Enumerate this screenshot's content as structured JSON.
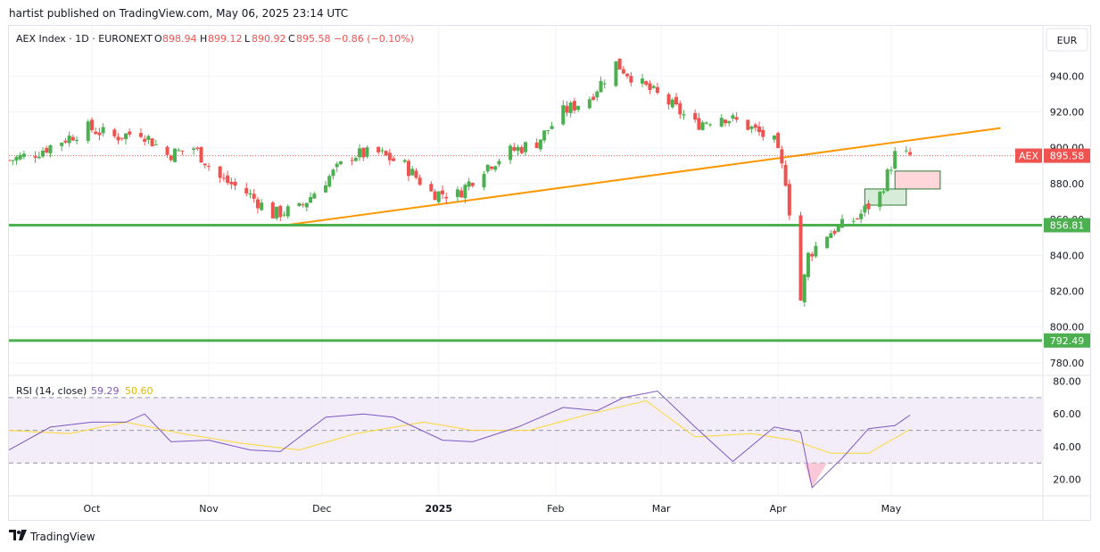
{
  "caption": "hartist published on TradingView.com, May 06, 2025 23:14 UTC",
  "footer": {
    "brand": "TradingView",
    "logo_icon": "tradingview-logo-icon"
  },
  "legend": {
    "symbol": "AEX Index · 1D · EURONEXT",
    "open_label": "O",
    "open": "898.94",
    "high_label": "H",
    "high": "899.12",
    "low_label": "L",
    "low": "890.92",
    "close_label": "C",
    "close": "895.58",
    "change": "−0.86 (−0.10%)"
  },
  "currency_button": "EUR",
  "colors": {
    "up": "#4caf50",
    "down": "#ef5350",
    "trendline": "#ff9800",
    "support": "#4caf50",
    "rsi": "#7e57c2",
    "rsi_ma": "#fdd835",
    "rsi_band": "#ede7f6",
    "oversold_fill": "#f8bbd0"
  },
  "chart_data": [
    {
      "type": "candlestick",
      "title": "AEX Index · 1D · EURONEXT",
      "y_ticks": [
        780,
        800,
        820,
        840,
        860,
        880,
        900,
        920,
        940
      ],
      "y_tick_labels": [
        "780.00",
        "800.00",
        "820.00",
        "840.00",
        "860.00",
        "880.00",
        "900.00",
        "920.00",
        "940.00"
      ],
      "ylim": [
        773,
        968
      ],
      "x_ticks": [
        "Oct",
        "Nov",
        "Dec",
        "2025",
        "Feb",
        "Mar",
        "Apr",
        "May"
      ],
      "x_tick_dates": [
        "2024-10-01",
        "2024-11-01",
        "2024-12-01",
        "2025-01-01",
        "2025-02-01",
        "2025-03-01",
        "2025-04-01",
        "2025-05-01"
      ],
      "x_start": "2024-09-09",
      "x_end": "2025-06-10",
      "grid": true,
      "close_series": {
        "name": "AEX",
        "x": [
          "2024-09-09",
          "2024-09-16",
          "2024-09-23",
          "2024-09-30",
          "2024-10-07",
          "2024-10-14",
          "2024-10-21",
          "2024-10-28",
          "2024-11-04",
          "2024-11-11",
          "2024-11-18",
          "2024-11-25",
          "2024-12-02",
          "2024-12-09",
          "2024-12-16",
          "2024-12-23",
          "2024-12-30",
          "2025-01-06",
          "2025-01-13",
          "2025-01-20",
          "2025-01-27",
          "2025-02-03",
          "2025-02-10",
          "2025-02-17",
          "2025-02-24",
          "2025-03-03",
          "2025-03-10",
          "2025-03-17",
          "2025-03-24",
          "2025-03-31",
          "2025-04-03",
          "2025-04-07",
          "2025-04-09",
          "2025-04-14",
          "2025-04-22",
          "2025-04-28",
          "2025-05-02",
          "2025-05-06"
        ],
        "close": [
          893,
          897,
          904,
          911,
          906,
          909,
          896,
          900,
          883,
          875,
          863,
          866,
          882,
          896,
          897,
          890,
          875,
          874,
          889,
          898,
          903,
          920,
          928,
          947,
          935,
          925,
          913,
          918,
          912,
          903,
          882,
          815,
          840,
          852,
          861,
          874,
          896,
          895.58
        ]
      },
      "price_labels": [
        {
          "text": "AEX",
          "value": "895.58",
          "kind": "last"
        },
        {
          "text": "",
          "value": "856.81",
          "kind": "support"
        },
        {
          "text": "",
          "value": "792.49",
          "kind": "support"
        }
      ],
      "annotations": {
        "trendline": {
          "x": [
            "2024-11-22",
            "2025-05-30"
          ],
          "y": [
            857,
            911
          ]
        },
        "support_lines": [
          856.81,
          792.49
        ],
        "red_box": {
          "x": [
            "2025-05-02",
            "2025-05-14"
          ],
          "y": [
            877,
            887
          ]
        },
        "green_box": {
          "x": [
            "2025-04-24",
            "2025-05-05"
          ],
          "y": [
            868,
            877
          ]
        }
      }
    },
    {
      "type": "line",
      "title": "RSI (14, close)",
      "values_text": [
        "59.29",
        "50.60"
      ],
      "y_ticks": [
        20,
        40,
        60,
        80
      ],
      "y_tick_labels": [
        "20.00",
        "40.00",
        "60.00",
        "80.00"
      ],
      "ylim": [
        10,
        83
      ],
      "bands": [
        30,
        50,
        70
      ],
      "series": [
        {
          "x": [
            "2024-09-09",
            "2024-09-20",
            "2024-10-01",
            "2024-10-10",
            "2024-10-15",
            "2024-10-22",
            "2024-11-01",
            "2024-11-12",
            "2024-11-20",
            "2024-12-02",
            "2024-12-12",
            "2024-12-20",
            "2025-01-02",
            "2025-01-10",
            "2025-01-22",
            "2025-02-03",
            "2025-02-12",
            "2025-02-19",
            "2025-02-28",
            "2025-03-10",
            "2025-03-20",
            "2025-03-31",
            "2025-04-07",
            "2025-04-10",
            "2025-04-18",
            "2025-04-25",
            "2025-05-02",
            "2025-05-06"
          ],
          "values": [
            38,
            52,
            55,
            55,
            60,
            43,
            44,
            38,
            37,
            58,
            60,
            58,
            44,
            43,
            52,
            64,
            62,
            70,
            74,
            52,
            31,
            52,
            49,
            15,
            33,
            51,
            53,
            59.29
          ]
        },
        {
          "x": [
            "2024-09-09",
            "2024-09-25",
            "2024-10-10",
            "2024-10-25",
            "2024-11-10",
            "2024-11-25",
            "2024-12-10",
            "2024-12-28",
            "2025-01-10",
            "2025-01-25",
            "2025-02-10",
            "2025-02-25",
            "2025-03-10",
            "2025-03-25",
            "2025-04-05",
            "2025-04-15",
            "2025-04-25",
            "2025-05-06"
          ],
          "values": [
            50,
            48,
            55,
            48,
            42,
            38,
            48,
            55,
            50,
            50,
            60,
            68,
            46,
            48,
            44,
            36,
            36,
            50.6
          ]
        }
      ]
    }
  ]
}
